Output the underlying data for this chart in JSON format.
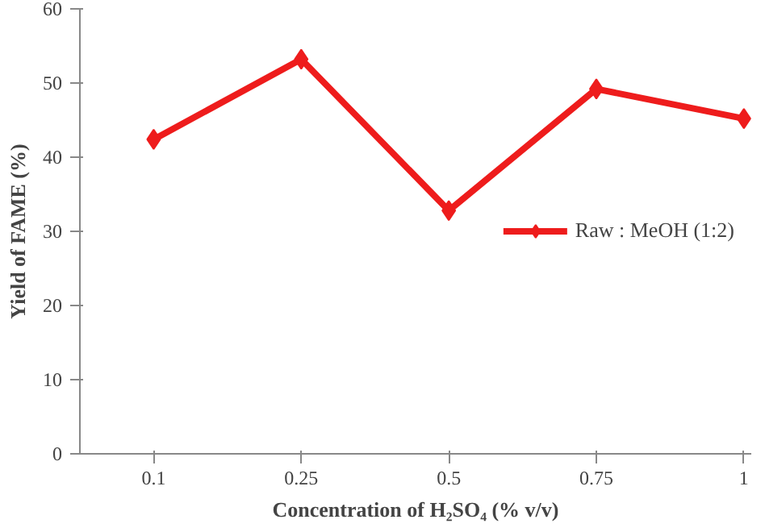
{
  "chart_data": {
    "type": "line",
    "xlabel": "Concentration of H₂SO₄ (% v/v)",
    "ylabel": "Yield of FAME (%)",
    "categories": [
      "0.1",
      "0.25",
      "0.5",
      "0.75",
      "1"
    ],
    "series": [
      {
        "name": "Raw : MeOH (1:2)",
        "color": "#ee1c1c",
        "values": [
          42.4,
          53.2,
          32.8,
          49.2,
          45.2
        ]
      }
    ],
    "ylim": [
      0,
      60
    ],
    "yticks": [
      0,
      10,
      20,
      30,
      40,
      50,
      60
    ],
    "grid": false,
    "legend": "right",
    "marker": "diamond",
    "line_style": "solid"
  }
}
